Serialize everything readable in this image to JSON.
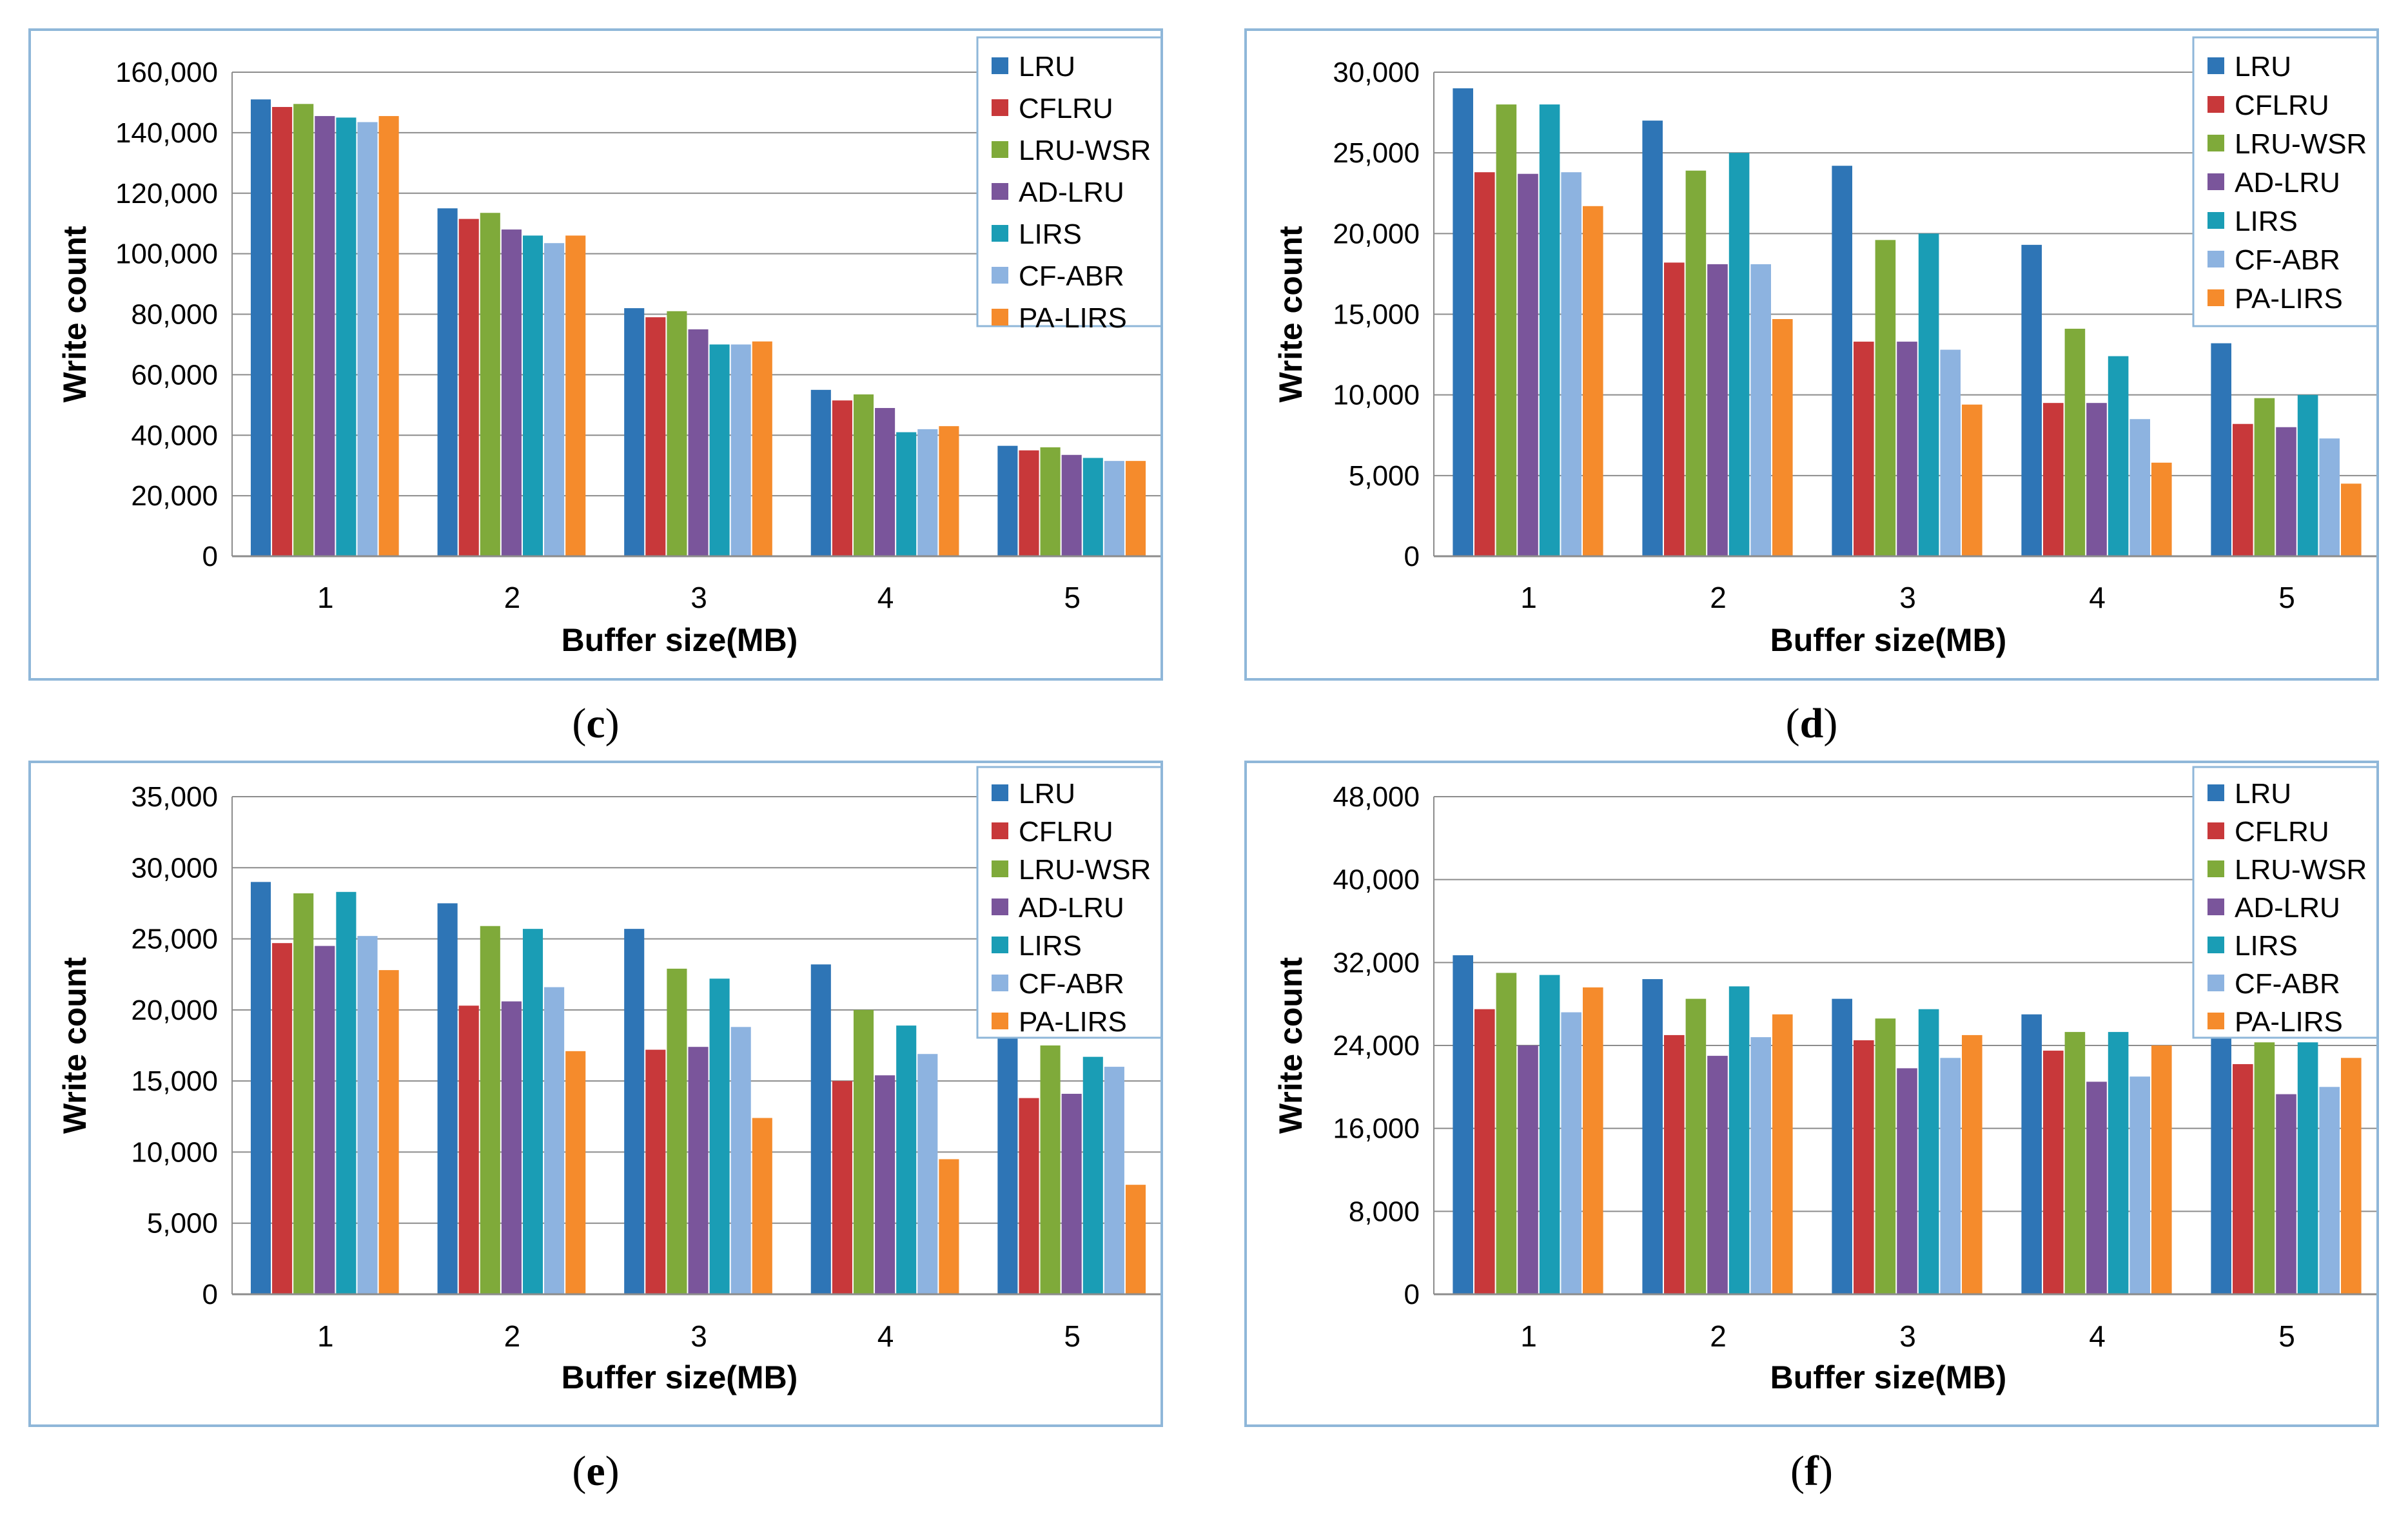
{
  "chart_data": [
    {
      "type": "bar",
      "panel_label": "c",
      "categories": [
        "1",
        "2",
        "3",
        "4",
        "5"
      ],
      "xlabel": "Buffer size(MB)",
      "ylabel": "Write count",
      "ylim": [
        0,
        160000
      ],
      "yticks": [
        0,
        20000,
        40000,
        60000,
        80000,
        100000,
        120000,
        140000,
        160000
      ],
      "ytick_labels": [
        "0",
        "20,000",
        "40,000",
        "60,000",
        "80,000",
        "100,000",
        "120,000",
        "140,000",
        "160,000"
      ],
      "grid": true,
      "legend_position": "top-right",
      "series": [
        {
          "name": "LRU",
          "values": [
            151000,
            115000,
            82000,
            55000,
            36500
          ]
        },
        {
          "name": "CFLRU",
          "values": [
            148500,
            111500,
            79000,
            51500,
            35000
          ]
        },
        {
          "name": "LRU-WSR",
          "values": [
            149500,
            113500,
            81000,
            53500,
            36000
          ]
        },
        {
          "name": "AD-LRU",
          "values": [
            145500,
            108000,
            75000,
            49000,
            33500
          ]
        },
        {
          "name": "LIRS",
          "values": [
            145000,
            106000,
            70000,
            41000,
            32500
          ]
        },
        {
          "name": "CF-ABR",
          "values": [
            143500,
            103500,
            70000,
            42000,
            31500
          ]
        },
        {
          "name": "PA-LIRS",
          "values": [
            145500,
            106000,
            71000,
            43000,
            31500
          ]
        }
      ]
    },
    {
      "type": "bar",
      "panel_label": "d",
      "categories": [
        "1",
        "2",
        "3",
        "4",
        "5"
      ],
      "xlabel": "Buffer size(MB)",
      "ylabel": "Write count",
      "ylim": [
        0,
        30000
      ],
      "yticks": [
        0,
        5000,
        10000,
        15000,
        20000,
        25000,
        30000
      ],
      "ytick_labels": [
        "0",
        "5,000",
        "10,000",
        "15,000",
        "20,000",
        "25,000",
        "30,000"
      ],
      "grid": true,
      "legend_position": "top-right",
      "series": [
        {
          "name": "LRU",
          "values": [
            29000,
            27000,
            24200,
            19300,
            13200
          ]
        },
        {
          "name": "CFLRU",
          "values": [
            23800,
            18200,
            13300,
            9500,
            8200
          ]
        },
        {
          "name": "LRU-WSR",
          "values": [
            28000,
            23900,
            19600,
            14100,
            9800
          ]
        },
        {
          "name": "AD-LRU",
          "values": [
            23700,
            18100,
            13300,
            9500,
            8000
          ]
        },
        {
          "name": "LIRS",
          "values": [
            28000,
            25000,
            20000,
            12400,
            10000
          ]
        },
        {
          "name": "CF-ABR",
          "values": [
            23800,
            18100,
            12800,
            8500,
            7300
          ]
        },
        {
          "name": "PA-LIRS",
          "values": [
            21700,
            14700,
            9400,
            5800,
            4500
          ]
        }
      ]
    },
    {
      "type": "bar",
      "panel_label": "e",
      "categories": [
        "1",
        "2",
        "3",
        "4",
        "5"
      ],
      "xlabel": "Buffer size(MB)",
      "ylabel": "Write count",
      "ylim": [
        0,
        35000
      ],
      "yticks": [
        0,
        5000,
        10000,
        15000,
        20000,
        25000,
        30000,
        35000
      ],
      "ytick_labels": [
        "0",
        "5,000",
        "10,000",
        "15,000",
        "20,000",
        "25,000",
        "30,000",
        "35,000"
      ],
      "grid": true,
      "legend_position": "top-right",
      "series": [
        {
          "name": "LRU",
          "values": [
            29000,
            27500,
            25700,
            23200,
            20500
          ]
        },
        {
          "name": "CFLRU",
          "values": [
            24700,
            20300,
            17200,
            15000,
            13800
          ]
        },
        {
          "name": "LRU-WSR",
          "values": [
            28200,
            25900,
            22900,
            20000,
            17500
          ]
        },
        {
          "name": "AD-LRU",
          "values": [
            24500,
            20600,
            17400,
            15400,
            14100
          ]
        },
        {
          "name": "LIRS",
          "values": [
            28300,
            25700,
            22200,
            18900,
            16700
          ]
        },
        {
          "name": "CF-ABR",
          "values": [
            25200,
            21600,
            18800,
            16900,
            16000
          ]
        },
        {
          "name": "PA-LIRS",
          "values": [
            22800,
            17100,
            12400,
            9500,
            7700
          ]
        }
      ]
    },
    {
      "type": "bar",
      "panel_label": "f",
      "categories": [
        "1",
        "2",
        "3",
        "4",
        "5"
      ],
      "xlabel": "Buffer size(MB)",
      "ylabel": "Write count",
      "ylim": [
        0,
        48000
      ],
      "yticks": [
        0,
        8000,
        16000,
        24000,
        32000,
        40000,
        48000
      ],
      "ytick_labels": [
        "0",
        "8,000",
        "16,000",
        "24,000",
        "32,000",
        "40,000",
        "48,000"
      ],
      "grid": true,
      "legend_position": "top-right",
      "series": [
        {
          "name": "LRU",
          "values": [
            32700,
            30400,
            28500,
            27000,
            26500
          ]
        },
        {
          "name": "CFLRU",
          "values": [
            27500,
            25000,
            24500,
            23500,
            22200
          ]
        },
        {
          "name": "LRU-WSR",
          "values": [
            31000,
            28500,
            26600,
            25300,
            24300
          ]
        },
        {
          "name": "AD-LRU",
          "values": [
            24000,
            23000,
            21800,
            20500,
            19300
          ]
        },
        {
          "name": "LIRS",
          "values": [
            30800,
            29700,
            27500,
            25300,
            24300
          ]
        },
        {
          "name": "CF-ABR",
          "values": [
            27200,
            24800,
            22800,
            21000,
            20000
          ]
        },
        {
          "name": "PA-LIRS",
          "values": [
            29600,
            27000,
            25000,
            24000,
            22800
          ]
        }
      ]
    }
  ],
  "series_colors": [
    "#2e75b6",
    "#c8383a",
    "#7faa3a",
    "#7a559b",
    "#1a9db5",
    "#8db3e0",
    "#f58b2c"
  ]
}
